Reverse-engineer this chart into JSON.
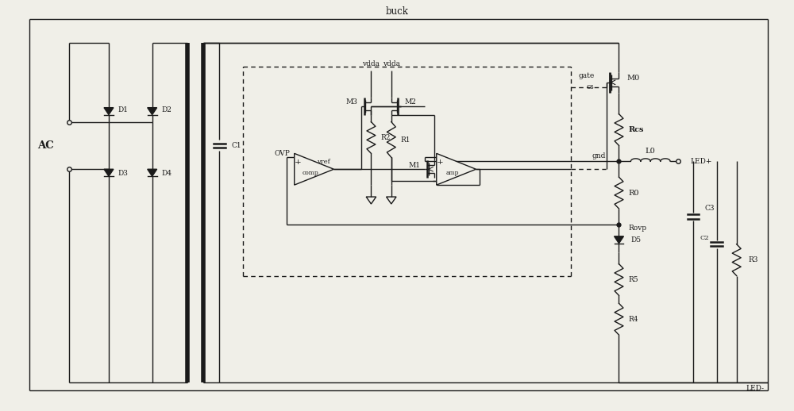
{
  "title": "buck",
  "bg_color": "#f0efe8",
  "line_color": "#1a1a1a",
  "figsize": [
    10.0,
    5.18
  ],
  "dpi": 100,
  "xlim": [
    0,
    100
  ],
  "ylim": [
    0,
    51.8
  ]
}
